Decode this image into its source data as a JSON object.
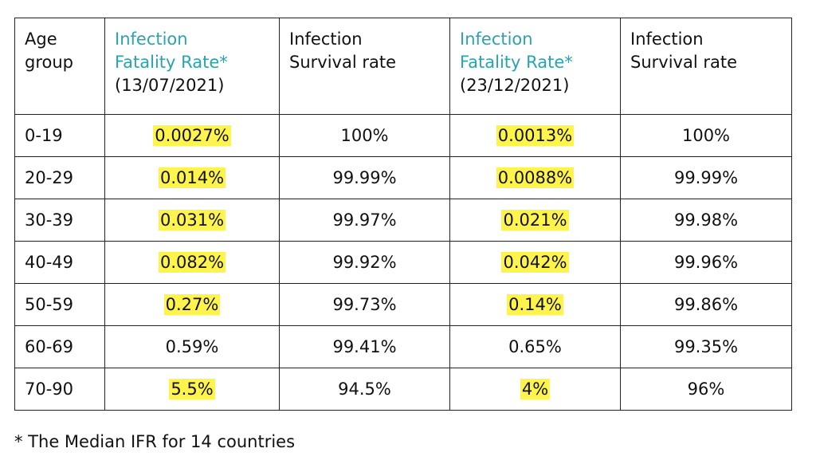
{
  "headers": [
    {
      "line1": "Age",
      "line2": "group",
      "date": ""
    },
    {
      "line1": "Infection",
      "line2": "Fatality Rate*",
      "date": "(13/07/2021)"
    },
    {
      "line1": "Infection",
      "line2": "Survival rate",
      "date": ""
    },
    {
      "line1": "Infection",
      "line2": "Fatality Rate*",
      "date": "(23/12/2021)"
    },
    {
      "line1": "Infection",
      "line2": "Survival rate",
      "date": ""
    }
  ],
  "rows": [
    {
      "age": "0-19",
      "ifr1": "0.0027%",
      "sr1": "100%",
      "ifr2": "0.0013%",
      "sr2": "100%",
      "hl1": true,
      "hl2": true
    },
    {
      "age": "20-29",
      "ifr1": "0.014%",
      "sr1": "99.99%",
      "ifr2": "0.0088%",
      "sr2": "99.99%",
      "hl1": true,
      "hl2": true
    },
    {
      "age": "30-39",
      "ifr1": "0.031%",
      "sr1": "99.97%",
      "ifr2": "0.021%",
      "sr2": "99.98%",
      "hl1": true,
      "hl2": true
    },
    {
      "age": "40-49",
      "ifr1": "0.082%",
      "sr1": "99.92%",
      "ifr2": "0.042%",
      "sr2": "99.96%",
      "hl1": true,
      "hl2": true
    },
    {
      "age": "50-59",
      "ifr1": "0.27%",
      "sr1": "99.73%",
      "ifr2": "0.14%",
      "sr2": "99.86%",
      "hl1": true,
      "hl2": true
    },
    {
      "age": "60-69",
      "ifr1": "0.59%",
      "sr1": "99.41%",
      "ifr2": "0.65%",
      "sr2": "99.35%",
      "hl1": false,
      "hl2": false
    },
    {
      "age": "70-90",
      "ifr1": "5.5%",
      "sr1": "94.5%",
      "ifr2": "4%",
      "sr2": "96%",
      "hl1": true,
      "hl2": true
    }
  ],
  "footnote": "* The Median IFR for 14 countries",
  "colors": {
    "accent": "#2aa3ad",
    "highlight": "#fef44c",
    "border": "#222222"
  }
}
